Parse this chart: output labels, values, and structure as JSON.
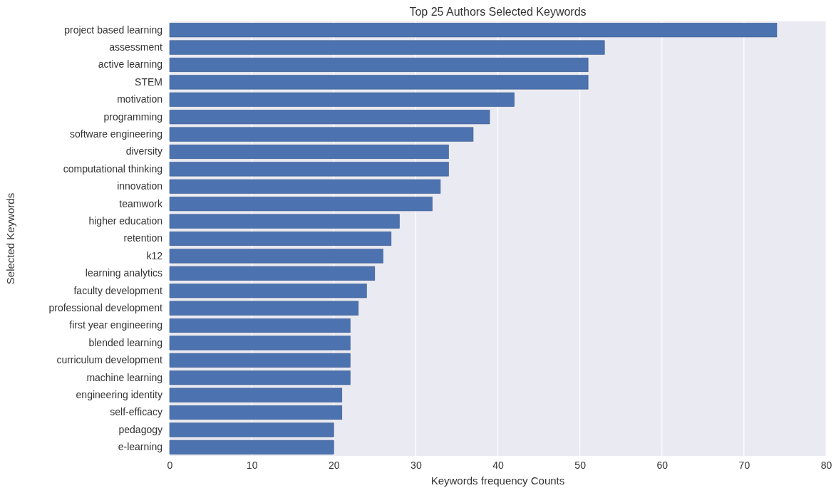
{
  "chart_data": {
    "type": "bar",
    "orientation": "horizontal",
    "title": "Top 25 Authors Selected Keywords",
    "xlabel": "Keywords frequency Counts",
    "ylabel": "Selected Keywords",
    "categories": [
      "project based learning",
      "assessment",
      "active learning",
      "STEM",
      "motivation",
      "programming",
      "software engineering",
      "diversity",
      "computational thinking",
      "innovation",
      "teamwork",
      "higher education",
      "retention",
      "k12",
      "learning analytics",
      "faculty development",
      "professional development",
      "first year engineering",
      "blended learning",
      "curriculum development",
      "machine learning",
      "engineering identity",
      "self-efficacy",
      "pedagogy",
      "e-learning"
    ],
    "values": [
      74,
      53,
      51,
      51,
      42,
      39,
      37,
      34,
      34,
      33,
      32,
      28,
      27,
      26,
      25,
      24,
      23,
      22,
      22,
      22,
      22,
      21,
      21,
      20,
      20
    ],
    "color": "#4c72b0",
    "xlim": [
      0,
      80
    ],
    "xticks": [
      0,
      10,
      20,
      30,
      40,
      50,
      60,
      70,
      80
    ],
    "grid": "x"
  }
}
